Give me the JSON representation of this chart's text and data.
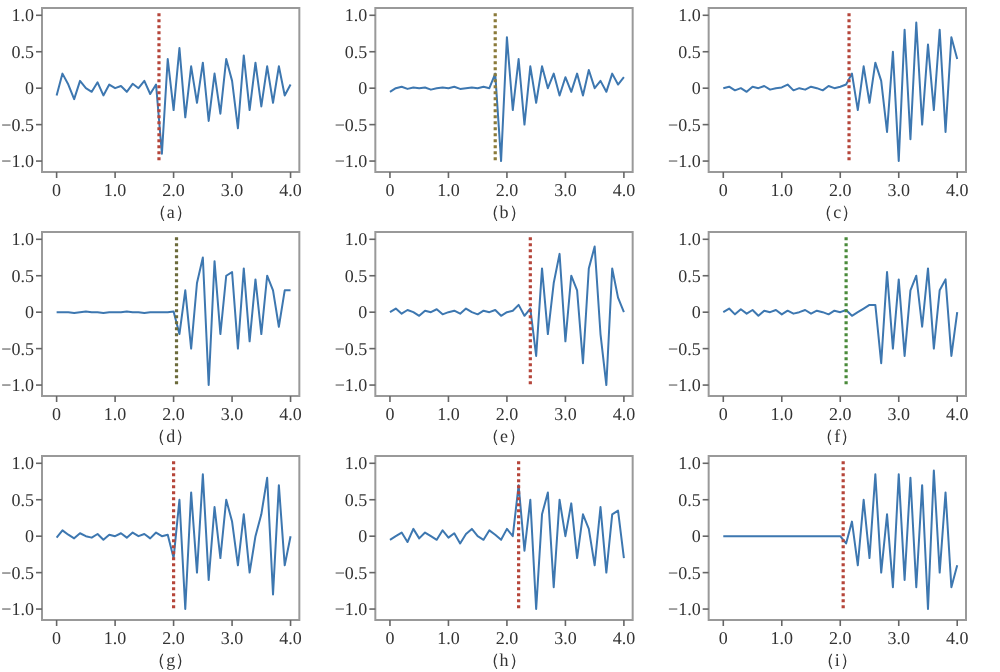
{
  "chart_data": [
    {
      "type": "line",
      "xlabel": "（a）",
      "x": [
        0,
        0.1,
        0.2,
        0.3,
        0.4,
        0.5,
        0.6,
        0.7,
        0.8,
        0.9,
        1.0,
        1.1,
        1.2,
        1.3,
        1.4,
        1.5,
        1.6,
        1.7,
        1.8,
        1.9,
        2.0,
        2.1,
        2.2,
        2.3,
        2.4,
        2.5,
        2.6,
        2.7,
        2.8,
        2.9,
        3.0,
        3.1,
        3.2,
        3.3,
        3.4,
        3.5,
        3.6,
        3.7,
        3.8,
        3.9,
        4.0
      ],
      "xlim": [
        -0.25,
        4.15
      ],
      "ylim": [
        -1.15,
        1.1
      ],
      "xticks": [
        {
          "value": 0,
          "label": "0"
        },
        {
          "value": 1,
          "label": "1.0"
        },
        {
          "value": 2,
          "label": "2.0"
        },
        {
          "value": 3,
          "label": "3.0"
        },
        {
          "value": 4,
          "label": "4.0"
        }
      ],
      "yticks": [
        {
          "value": 1,
          "label": "1.0"
        },
        {
          "value": 0.5,
          "label": "0.5"
        },
        {
          "value": 0,
          "label": "0"
        },
        {
          "value": -0.5,
          "label": "−0.5"
        },
        {
          "value": -1,
          "label": "−1.0"
        }
      ],
      "ref_lines": [
        {
          "axis": "x",
          "value": 1.75,
          "color": "#b5453a",
          "line_style": "dotted"
        }
      ],
      "series": [
        {
          "color": "#3d77b0",
          "values": [
            -0.1,
            0.2,
            0.05,
            -0.15,
            0.1,
            0.0,
            -0.05,
            0.08,
            -0.1,
            0.05,
            0.0,
            0.03,
            -0.05,
            0.06,
            0.0,
            0.1,
            -0.08,
            0.05,
            -0.9,
            0.4,
            -0.3,
            0.55,
            -0.4,
            0.3,
            -0.2,
            0.35,
            -0.45,
            0.2,
            -0.35,
            0.4,
            0.1,
            -0.55,
            0.45,
            -0.3,
            0.35,
            -0.25,
            0.3,
            -0.2,
            0.3,
            -0.1,
            0.05
          ]
        }
      ]
    },
    {
      "type": "line",
      "xlabel": "（b）",
      "x": [
        0,
        0.1,
        0.2,
        0.3,
        0.4,
        0.5,
        0.6,
        0.7,
        0.8,
        0.9,
        1.0,
        1.1,
        1.2,
        1.3,
        1.4,
        1.5,
        1.6,
        1.7,
        1.8,
        1.9,
        2.0,
        2.1,
        2.2,
        2.3,
        2.4,
        2.5,
        2.6,
        2.7,
        2.8,
        2.9,
        3.0,
        3.1,
        3.2,
        3.3,
        3.4,
        3.5,
        3.6,
        3.7,
        3.8,
        3.9,
        4.0
      ],
      "xlim": [
        -0.25,
        4.15
      ],
      "ylim": [
        -1.15,
        1.1
      ],
      "xticks": [
        {
          "value": 0,
          "label": "0"
        },
        {
          "value": 1,
          "label": "1.0"
        },
        {
          "value": 2,
          "label": "2.0"
        },
        {
          "value": 3,
          "label": "3.0"
        },
        {
          "value": 4,
          "label": "4.0"
        }
      ],
      "yticks": [
        {
          "value": 1,
          "label": "1.0"
        },
        {
          "value": 0.5,
          "label": "0.5"
        },
        {
          "value": 0,
          "label": "0"
        },
        {
          "value": -0.5,
          "label": "−0.5"
        },
        {
          "value": -1,
          "label": "−1.0"
        }
      ],
      "ref_lines": [
        {
          "axis": "x",
          "value": 1.8,
          "color": "#8a7a3a",
          "line_style": "dotted"
        }
      ],
      "series": [
        {
          "color": "#3d77b0",
          "values": [
            -0.05,
            0.0,
            0.02,
            -0.01,
            0.01,
            0.0,
            0.01,
            -0.02,
            0.0,
            0.01,
            0.0,
            0.02,
            -0.01,
            0.0,
            0.01,
            0.0,
            0.02,
            0.0,
            0.2,
            -1.0,
            0.7,
            -0.3,
            0.4,
            -0.5,
            0.3,
            -0.2,
            0.3,
            0.0,
            0.2,
            -0.1,
            0.15,
            -0.05,
            0.2,
            -0.1,
            0.25,
            0.0,
            0.1,
            -0.05,
            0.2,
            0.05,
            0.15
          ]
        }
      ]
    },
    {
      "type": "line",
      "xlabel": "（c）",
      "x": [
        0,
        0.1,
        0.2,
        0.3,
        0.4,
        0.5,
        0.6,
        0.7,
        0.8,
        0.9,
        1.0,
        1.1,
        1.2,
        1.3,
        1.4,
        1.5,
        1.6,
        1.7,
        1.8,
        1.9,
        2.0,
        2.1,
        2.2,
        2.3,
        2.4,
        2.5,
        2.6,
        2.7,
        2.8,
        2.9,
        3.0,
        3.1,
        3.2,
        3.3,
        3.4,
        3.5,
        3.6,
        3.7,
        3.8,
        3.9,
        4.0
      ],
      "xlim": [
        -0.25,
        4.15
      ],
      "ylim": [
        -1.15,
        1.1
      ],
      "xticks": [
        {
          "value": 0,
          "label": "0"
        },
        {
          "value": 1,
          "label": "1.0"
        },
        {
          "value": 2,
          "label": "2.0"
        },
        {
          "value": 3,
          "label": "3.0"
        },
        {
          "value": 4,
          "label": "4.0"
        }
      ],
      "yticks": [
        {
          "value": 1,
          "label": "1.0"
        },
        {
          "value": 0.5,
          "label": "0.5"
        },
        {
          "value": 0,
          "label": "0"
        },
        {
          "value": -0.5,
          "label": "−0.5"
        },
        {
          "value": -1,
          "label": "−1.0"
        }
      ],
      "ref_lines": [
        {
          "axis": "x",
          "value": 2.15,
          "color": "#b5453a",
          "line_style": "dotted"
        }
      ],
      "series": [
        {
          "color": "#3d77b0",
          "values": [
            0.0,
            0.02,
            -0.03,
            0.0,
            -0.05,
            0.02,
            0.0,
            0.03,
            -0.02,
            0.0,
            0.01,
            0.05,
            -0.03,
            0.0,
            -0.02,
            0.02,
            0.0,
            -0.03,
            0.03,
            0.0,
            0.02,
            0.05,
            0.2,
            -0.3,
            0.3,
            -0.2,
            0.35,
            0.1,
            -0.6,
            0.5,
            -1.0,
            0.8,
            -0.7,
            0.9,
            -0.5,
            0.6,
            -0.3,
            0.8,
            -0.6,
            0.7,
            0.4
          ]
        }
      ]
    },
    {
      "type": "line",
      "xlabel": "（d）",
      "x": [
        0,
        0.1,
        0.2,
        0.3,
        0.4,
        0.5,
        0.6,
        0.7,
        0.8,
        0.9,
        1.0,
        1.1,
        1.2,
        1.3,
        1.4,
        1.5,
        1.6,
        1.7,
        1.8,
        1.9,
        2.0,
        2.1,
        2.2,
        2.3,
        2.4,
        2.5,
        2.6,
        2.7,
        2.8,
        2.9,
        3.0,
        3.1,
        3.2,
        3.3,
        3.4,
        3.5,
        3.6,
        3.7,
        3.8,
        3.9,
        4.0
      ],
      "xlim": [
        -0.25,
        4.15
      ],
      "ylim": [
        -1.15,
        1.1
      ],
      "xticks": [
        {
          "value": 0,
          "label": "0"
        },
        {
          "value": 1,
          "label": "1.0"
        },
        {
          "value": 2,
          "label": "2.0"
        },
        {
          "value": 3,
          "label": "3.0"
        },
        {
          "value": 4,
          "label": "4.0"
        }
      ],
      "yticks": [
        {
          "value": 1,
          "label": "1.0"
        },
        {
          "value": 0.5,
          "label": "0.5"
        },
        {
          "value": 0,
          "label": "0"
        },
        {
          "value": -0.5,
          "label": "−0.5"
        },
        {
          "value": -1,
          "label": "−1.0"
        }
      ],
      "ref_lines": [
        {
          "axis": "x",
          "value": 2.05,
          "color": "#6b6a3a",
          "line_style": "dotted"
        }
      ],
      "series": [
        {
          "color": "#3d77b0",
          "values": [
            0.0,
            0.0,
            0.0,
            -0.01,
            0.0,
            0.01,
            0.0,
            0.0,
            -0.01,
            0.0,
            0.0,
            0.0,
            0.01,
            0.0,
            0.0,
            -0.01,
            0.0,
            0.0,
            0.0,
            0.0,
            0.01,
            -0.3,
            0.3,
            -0.5,
            0.4,
            0.75,
            -1.0,
            0.7,
            -0.3,
            0.5,
            0.55,
            -0.5,
            0.6,
            -0.4,
            0.45,
            -0.3,
            0.5,
            0.3,
            -0.2,
            0.3,
            0.3
          ]
        }
      ]
    },
    {
      "type": "line",
      "xlabel": "（e）",
      "x": [
        0,
        0.1,
        0.2,
        0.3,
        0.4,
        0.5,
        0.6,
        0.7,
        0.8,
        0.9,
        1.0,
        1.1,
        1.2,
        1.3,
        1.4,
        1.5,
        1.6,
        1.7,
        1.8,
        1.9,
        2.0,
        2.1,
        2.2,
        2.3,
        2.4,
        2.5,
        2.6,
        2.7,
        2.8,
        2.9,
        3.0,
        3.1,
        3.2,
        3.3,
        3.4,
        3.5,
        3.6,
        3.7,
        3.8,
        3.9,
        4.0
      ],
      "xlim": [
        -0.25,
        4.15
      ],
      "ylim": [
        -1.15,
        1.1
      ],
      "xticks": [
        {
          "value": 0,
          "label": "0"
        },
        {
          "value": 1,
          "label": "1.0"
        },
        {
          "value": 2,
          "label": "2.0"
        },
        {
          "value": 3,
          "label": "3.0"
        },
        {
          "value": 4,
          "label": "4.0"
        }
      ],
      "yticks": [
        {
          "value": 1,
          "label": "1.0"
        },
        {
          "value": 0.5,
          "label": "0.5"
        },
        {
          "value": 0,
          "label": "0"
        },
        {
          "value": -0.5,
          "label": "−0.5"
        },
        {
          "value": -1,
          "label": "−1.0"
        }
      ],
      "ref_lines": [
        {
          "axis": "x",
          "value": 2.4,
          "color": "#b5453a",
          "line_style": "dotted"
        }
      ],
      "series": [
        {
          "color": "#3d77b0",
          "values": [
            0.0,
            0.05,
            -0.02,
            0.03,
            0.0,
            -0.05,
            0.02,
            0.0,
            0.04,
            -0.03,
            0.0,
            0.02,
            -0.02,
            0.05,
            0.0,
            -0.03,
            0.02,
            0.0,
            0.03,
            -0.05,
            0.0,
            0.02,
            0.1,
            -0.05,
            0.05,
            -0.6,
            0.6,
            -0.3,
            0.4,
            0.8,
            -0.4,
            0.5,
            0.3,
            -0.7,
            0.6,
            0.9,
            -0.3,
            -1.0,
            0.6,
            0.2,
            0.0
          ]
        }
      ]
    },
    {
      "type": "line",
      "xlabel": "（f）",
      "x": [
        0,
        0.1,
        0.2,
        0.3,
        0.4,
        0.5,
        0.6,
        0.7,
        0.8,
        0.9,
        1.0,
        1.1,
        1.2,
        1.3,
        1.4,
        1.5,
        1.6,
        1.7,
        1.8,
        1.9,
        2.0,
        2.1,
        2.2,
        2.3,
        2.4,
        2.5,
        2.6,
        2.7,
        2.8,
        2.9,
        3.0,
        3.1,
        3.2,
        3.3,
        3.4,
        3.5,
        3.6,
        3.7,
        3.8,
        3.9,
        4.0
      ],
      "xlim": [
        -0.25,
        4.15
      ],
      "ylim": [
        -1.15,
        1.1
      ],
      "xticks": [
        {
          "value": 0,
          "label": "0"
        },
        {
          "value": 1,
          "label": "1.0"
        },
        {
          "value": 2,
          "label": "2.0"
        },
        {
          "value": 3,
          "label": "3.0"
        },
        {
          "value": 4,
          "label": "4.0"
        }
      ],
      "yticks": [
        {
          "value": 1,
          "label": "1.0"
        },
        {
          "value": 0.5,
          "label": "0.5"
        },
        {
          "value": 0,
          "label": "0"
        },
        {
          "value": -0.5,
          "label": "−0.5"
        },
        {
          "value": -1,
          "label": "−1.0"
        }
      ],
      "ref_lines": [
        {
          "axis": "x",
          "value": 2.1,
          "color": "#4a8a3a",
          "line_style": "dotted"
        }
      ],
      "series": [
        {
          "color": "#3d77b0",
          "values": [
            0.0,
            0.05,
            -0.03,
            0.04,
            -0.02,
            0.03,
            -0.05,
            0.02,
            0.0,
            0.03,
            -0.03,
            0.02,
            -0.02,
            0.0,
            0.03,
            -0.02,
            0.02,
            0.0,
            -0.03,
            0.02,
            0.0,
            0.03,
            -0.05,
            0.0,
            0.05,
            0.1,
            0.1,
            -0.7,
            0.55,
            -0.5,
            0.45,
            -0.6,
            0.3,
            0.5,
            -0.2,
            0.6,
            -0.5,
            0.3,
            0.45,
            -0.6,
            0.0
          ]
        }
      ]
    },
    {
      "type": "line",
      "xlabel": "（g）",
      "x": [
        0,
        0.1,
        0.2,
        0.3,
        0.4,
        0.5,
        0.6,
        0.7,
        0.8,
        0.9,
        1.0,
        1.1,
        1.2,
        1.3,
        1.4,
        1.5,
        1.6,
        1.7,
        1.8,
        1.9,
        2.0,
        2.1,
        2.2,
        2.3,
        2.4,
        2.5,
        2.6,
        2.7,
        2.8,
        2.9,
        3.0,
        3.1,
        3.2,
        3.3,
        3.4,
        3.5,
        3.6,
        3.7,
        3.8,
        3.9,
        4.0
      ],
      "xlim": [
        -0.25,
        4.15
      ],
      "ylim": [
        -1.15,
        1.1
      ],
      "xticks": [
        {
          "value": 0,
          "label": "0"
        },
        {
          "value": 1,
          "label": "1.0"
        },
        {
          "value": 2,
          "label": "2.0"
        },
        {
          "value": 3,
          "label": "3.0"
        },
        {
          "value": 4,
          "label": "4.0"
        }
      ],
      "yticks": [
        {
          "value": 1,
          "label": "1.0"
        },
        {
          "value": 0.5,
          "label": "0.5"
        },
        {
          "value": 0,
          "label": "0"
        },
        {
          "value": -0.5,
          "label": "−0.5"
        },
        {
          "value": -1,
          "label": "−1.0"
        }
      ],
      "ref_lines": [
        {
          "axis": "x",
          "value": 2.0,
          "color": "#b5453a",
          "line_style": "dotted"
        }
      ],
      "series": [
        {
          "color": "#3d77b0",
          "values": [
            -0.02,
            0.08,
            0.02,
            -0.03,
            0.04,
            0.0,
            -0.02,
            0.03,
            -0.05,
            0.02,
            0.0,
            0.04,
            -0.02,
            0.05,
            0.0,
            0.03,
            -0.03,
            0.05,
            0.0,
            0.02,
            -0.3,
            0.5,
            -1.0,
            0.6,
            -0.5,
            0.85,
            -0.6,
            0.4,
            -0.3,
            0.5,
            0.2,
            -0.4,
            0.3,
            -0.5,
            0.0,
            0.3,
            0.8,
            -0.8,
            0.7,
            -0.4,
            0.0
          ]
        }
      ]
    },
    {
      "type": "line",
      "xlabel": "（h）",
      "x": [
        0,
        0.1,
        0.2,
        0.3,
        0.4,
        0.5,
        0.6,
        0.7,
        0.8,
        0.9,
        1.0,
        1.1,
        1.2,
        1.3,
        1.4,
        1.5,
        1.6,
        1.7,
        1.8,
        1.9,
        2.0,
        2.1,
        2.2,
        2.3,
        2.4,
        2.5,
        2.6,
        2.7,
        2.8,
        2.9,
        3.0,
        3.1,
        3.2,
        3.3,
        3.4,
        3.5,
        3.6,
        3.7,
        3.8,
        3.9,
        4.0
      ],
      "xlim": [
        -0.25,
        4.15
      ],
      "ylim": [
        -1.15,
        1.1
      ],
      "xticks": [
        {
          "value": 0,
          "label": "0"
        },
        {
          "value": 1,
          "label": "1.0"
        },
        {
          "value": 2,
          "label": "2.0"
        },
        {
          "value": 3,
          "label": "3.0"
        },
        {
          "value": 4,
          "label": "4.0"
        }
      ],
      "yticks": [
        {
          "value": 1,
          "label": "1.0"
        },
        {
          "value": 0.5,
          "label": "0.5"
        },
        {
          "value": 0,
          "label": "0"
        },
        {
          "value": -0.5,
          "label": "−0.5"
        },
        {
          "value": -1,
          "label": "−1.0"
        }
      ],
      "ref_lines": [
        {
          "axis": "x",
          "value": 2.2,
          "color": "#b5453a",
          "line_style": "dotted"
        }
      ],
      "series": [
        {
          "color": "#3d77b0",
          "values": [
            -0.05,
            0.0,
            0.05,
            -0.08,
            0.1,
            -0.03,
            0.05,
            0.0,
            -0.05,
            0.08,
            -0.02,
            0.04,
            -0.1,
            0.03,
            0.1,
            0.0,
            -0.05,
            0.08,
            0.02,
            -0.05,
            0.1,
            0.0,
            0.7,
            -0.2,
            0.5,
            -1.0,
            0.3,
            0.6,
            -0.7,
            0.5,
            0.0,
            0.45,
            -0.3,
            0.3,
            0.1,
            -0.4,
            0.4,
            -0.5,
            0.3,
            0.35,
            -0.3
          ]
        }
      ]
    },
    {
      "type": "line",
      "xlabel": "（i）",
      "x": [
        0,
        0.1,
        0.2,
        0.3,
        0.4,
        0.5,
        0.6,
        0.7,
        0.8,
        0.9,
        1.0,
        1.1,
        1.2,
        1.3,
        1.4,
        1.5,
        1.6,
        1.7,
        1.8,
        1.9,
        2.0,
        2.1,
        2.2,
        2.3,
        2.4,
        2.5,
        2.6,
        2.7,
        2.8,
        2.9,
        3.0,
        3.1,
        3.2,
        3.3,
        3.4,
        3.5,
        3.6,
        3.7,
        3.8,
        3.9,
        4.0
      ],
      "xlim": [
        -0.25,
        4.15
      ],
      "ylim": [
        -1.15,
        1.1
      ],
      "xticks": [
        {
          "value": 0,
          "label": "0"
        },
        {
          "value": 1,
          "label": "1.0"
        },
        {
          "value": 2,
          "label": "2.0"
        },
        {
          "value": 3,
          "label": "3.0"
        },
        {
          "value": 4,
          "label": "4.0"
        }
      ],
      "yticks": [
        {
          "value": 1,
          "label": "1.0"
        },
        {
          "value": 0.5,
          "label": "0.5"
        },
        {
          "value": 0,
          "label": "0"
        },
        {
          "value": -0.5,
          "label": "−0.5"
        },
        {
          "value": -1,
          "label": "−1.0"
        }
      ],
      "ref_lines": [
        {
          "axis": "x",
          "value": 2.05,
          "color": "#b5453a",
          "line_style": "dotted"
        }
      ],
      "series": [
        {
          "color": "#3d77b0",
          "values": [
            0,
            0,
            0,
            0,
            0,
            0,
            0,
            0,
            0,
            0,
            0,
            0,
            0,
            0,
            0,
            0,
            0,
            0,
            0,
            0,
            0,
            -0.1,
            0.2,
            -0.4,
            0.5,
            -0.3,
            0.85,
            -0.5,
            0.3,
            -0.7,
            0.85,
            -0.6,
            0.8,
            -0.7,
            0.7,
            -1.0,
            0.9,
            -0.5,
            0.6,
            -0.7,
            -0.4
          ]
        }
      ]
    }
  ]
}
